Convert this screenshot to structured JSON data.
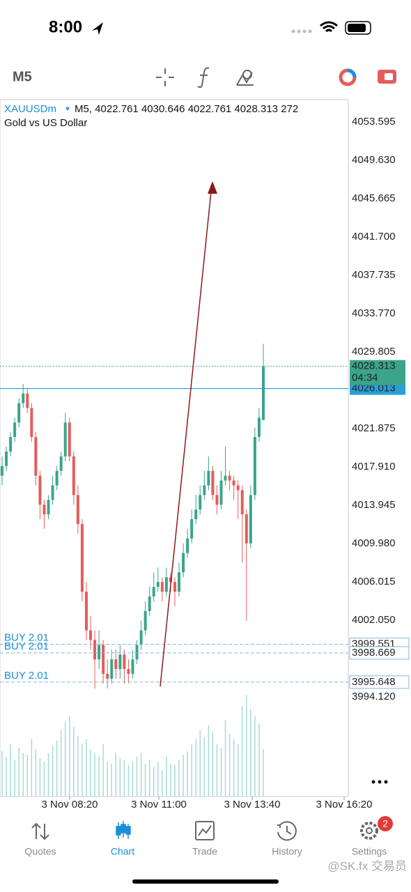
{
  "status_bar": {
    "time": "8:00"
  },
  "toolbar": {
    "timeframe": "M5"
  },
  "chart_data": {
    "type": "candlestick",
    "symbol": "XAUUSDm",
    "timeframe_label": "M5,",
    "subtitle": "Gold vs US Dollar",
    "ylim": [
      3994.12,
      4055.9
    ],
    "yticks": [
      {
        "value": 4053.595,
        "label": "4053.595"
      },
      {
        "value": 4049.63,
        "label": "4049.630"
      },
      {
        "value": 4045.665,
        "label": "4045.665"
      },
      {
        "value": 4041.7,
        "label": "4041.700"
      },
      {
        "value": 4037.735,
        "label": "4037.735"
      },
      {
        "value": 4033.77,
        "label": "4033.770"
      },
      {
        "value": 4029.805,
        "label": "4029.805"
      },
      {
        "value": 4021.875,
        "label": "4021.875"
      },
      {
        "value": 4017.91,
        "label": "4017.910"
      },
      {
        "value": 4013.945,
        "label": "4013.945"
      },
      {
        "value": 4009.98,
        "label": "4009.980"
      },
      {
        "value": 4006.015,
        "label": "4006.015"
      },
      {
        "value": 4002.05,
        "label": "4002.050"
      },
      {
        "value": 3994.12,
        "label": "3994.120"
      }
    ],
    "x_labels": [
      "3 Nov 08:20",
      "3 Nov 11:00",
      "3 Nov 13:40",
      "3 Nov 16:20"
    ],
    "up_color": "#3aa58a",
    "down_color": "#e35d5b",
    "volume_color": "#a8dad6",
    "candles": [
      [
        4017,
        4019,
        4016,
        4018
      ],
      [
        4018,
        4020,
        4017.5,
        4019.5
      ],
      [
        4019.5,
        4021.5,
        4019,
        4021
      ],
      [
        4021,
        4023,
        4020.5,
        4022.5
      ],
      [
        4022.5,
        4025,
        4022,
        4024.5
      ],
      [
        4024.5,
        4026.5,
        4024,
        4025.5
      ],
      [
        4025.5,
        4026,
        4023.5,
        4024
      ],
      [
        4024,
        4024.5,
        4020.5,
        4021
      ],
      [
        4021,
        4021.5,
        4016,
        4017
      ],
      [
        4017,
        4017.5,
        4012.5,
        4014
      ],
      [
        4014,
        4014.5,
        4011.5,
        4013
      ],
      [
        4013,
        4015,
        4012.5,
        4014.5
      ],
      [
        4014.5,
        4017,
        4014,
        4016
      ],
      [
        4016,
        4018,
        4015.5,
        4017.5
      ],
      [
        4017.5,
        4019.5,
        4017,
        4019
      ],
      [
        4019,
        4023.5,
        4018.5,
        4022.5
      ],
      [
        4022.5,
        4023,
        4018.5,
        4019
      ],
      [
        4019,
        4019.5,
        4014,
        4015
      ],
      [
        4015,
        4016,
        4011,
        4012
      ],
      [
        4012,
        4012.5,
        4004,
        4005
      ],
      [
        4005,
        4006,
        4000,
        4001
      ],
      [
        4001,
        4002.5,
        3999,
        4000
      ],
      [
        4000,
        4001,
        3995,
        3998
      ],
      [
        3998,
        4001,
        3997,
        3999.5
      ],
      [
        3999.5,
        4000,
        3995.5,
        3996.5
      ],
      [
        3996.5,
        3998,
        3995,
        3996
      ],
      [
        3996,
        3999,
        3995.5,
        3998
      ],
      [
        3998,
        3999,
        3996,
        3997
      ],
      [
        3997,
        3999.5,
        3996,
        3998.5
      ],
      [
        3998.5,
        3999,
        3995.5,
        3997
      ],
      [
        3997,
        3998,
        3995.5,
        3996.5
      ],
      [
        3996.5,
        3999,
        3996,
        3998
      ],
      [
        3998,
        4000,
        3997.5,
        3999.5
      ],
      [
        3999.5,
        4002,
        3999,
        4001
      ],
      [
        4001,
        4004,
        4000.5,
        4003
      ],
      [
        4003,
        4005.5,
        4002.5,
        4004.5
      ],
      [
        4004.5,
        4007,
        4004,
        4005.5
      ],
      [
        4005.5,
        4007.5,
        4005,
        4006
      ],
      [
        4006,
        4006.5,
        4004,
        4005
      ],
      [
        4005,
        4007.5,
        4004.5,
        4006.5
      ],
      [
        4006.5,
        4007,
        4005,
        4006
      ],
      [
        4006,
        4006.5,
        4003.5,
        4005
      ],
      [
        4005,
        4008,
        4004.5,
        4007
      ],
      [
        4007,
        4010,
        4006.5,
        4009
      ],
      [
        4009,
        4011.5,
        4008.5,
        4010.5
      ],
      [
        4010.5,
        4013.5,
        4010,
        4012.5
      ],
      [
        4012.5,
        4015,
        4012,
        4013.5
      ],
      [
        4013.5,
        4016,
        4013,
        4015
      ],
      [
        4015,
        4017.5,
        4014.5,
        4016
      ],
      [
        4016,
        4019,
        4015.5,
        4017.5
      ],
      [
        4017.5,
        4018,
        4014.5,
        4015
      ],
      [
        4015,
        4016,
        4013,
        4014
      ],
      [
        4014,
        4017.5,
        4013.5,
        4016.5
      ],
      [
        4016.5,
        4020,
        4016,
        4017
      ],
      [
        4017,
        4017.5,
        4015.5,
        4016.5
      ],
      [
        4016.5,
        4017,
        4014.5,
        4016
      ],
      [
        4016,
        4016.5,
        4012.5,
        4015.5
      ],
      [
        4015.5,
        4016,
        4008,
        4013
      ],
      [
        4013,
        4013.5,
        4002,
        4010
      ],
      [
        4010,
        4016,
        4009.5,
        4015
      ],
      [
        4015,
        4022,
        4014.5,
        4021
      ],
      [
        4021,
        4024,
        4020.5,
        4023
      ],
      [
        4022.761,
        4030.646,
        4022.761,
        4028.313
      ]
    ],
    "volumes": [
      260,
      230,
      300,
      210,
      280,
      250,
      240,
      330,
      270,
      220,
      200,
      250,
      290,
      320,
      380,
      430,
      460,
      400,
      350,
      300,
      330,
      270,
      250,
      230,
      300,
      200,
      190,
      250,
      220,
      210,
      180,
      200,
      230,
      250,
      190,
      210,
      170,
      200,
      150,
      230,
      190,
      180,
      210,
      240,
      260,
      300,
      330,
      380,
      340,
      410,
      370,
      300,
      280,
      440,
      360,
      330,
      300,
      520,
      580,
      500,
      460,
      420,
      272
    ],
    "price_lines": [
      {
        "price": 4026.013,
        "label": "4026.013"
      }
    ],
    "countdown": "04:34",
    "orders": [
      {
        "label": "BUY 2.01",
        "price": 3999.551,
        "price_label": "3999.551"
      },
      {
        "label": "BUY 2.01",
        "price": 3998.669,
        "price_label": "3998.669"
      },
      {
        "label": "BUY 2.01",
        "price": 3995.648,
        "price_label": "3995.648"
      }
    ]
  },
  "nav": {
    "items": [
      "Quotes",
      "Chart",
      "Trade",
      "History",
      "Settings"
    ],
    "badge": "2"
  },
  "watermark": "@SK.fx 交易员"
}
